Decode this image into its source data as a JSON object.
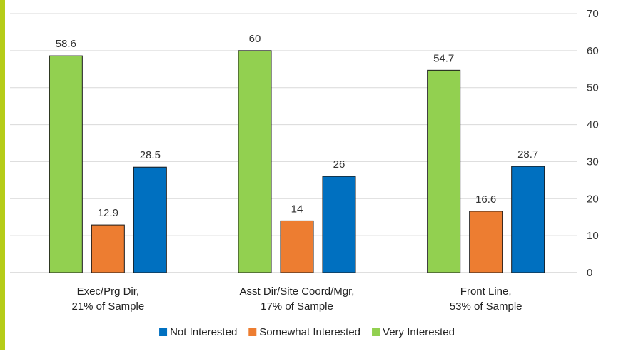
{
  "accent_color": "#b5cc18",
  "chart_data": {
    "type": "bar",
    "categories": [
      [
        "Exec/Prg Dir,",
        "21% of Sample"
      ],
      [
        "Asst Dir/Site Coord/Mgr,",
        "17% of Sample"
      ],
      [
        "Front Line,",
        "53% of Sample"
      ]
    ],
    "series": [
      {
        "name": "Very Interested",
        "color": "#92d050",
        "values": [
          58.6,
          60,
          54.7
        ]
      },
      {
        "name": "Somewhat Interested",
        "color": "#ed7d31",
        "values": [
          12.9,
          14,
          16.6
        ]
      },
      {
        "name": "Not Interested",
        "color": "#0070c0",
        "values": [
          28.5,
          26,
          28.7
        ]
      }
    ],
    "legend_order": [
      "Not Interested",
      "Somewhat Interested",
      "Very Interested"
    ],
    "legend_position": "bottom",
    "y_axis_position": "right",
    "ylim": [
      0,
      70
    ],
    "yticks": [
      0,
      10,
      20,
      30,
      40,
      50,
      60,
      70
    ],
    "grid": true,
    "title": "",
    "xlabel": "",
    "ylabel": ""
  }
}
